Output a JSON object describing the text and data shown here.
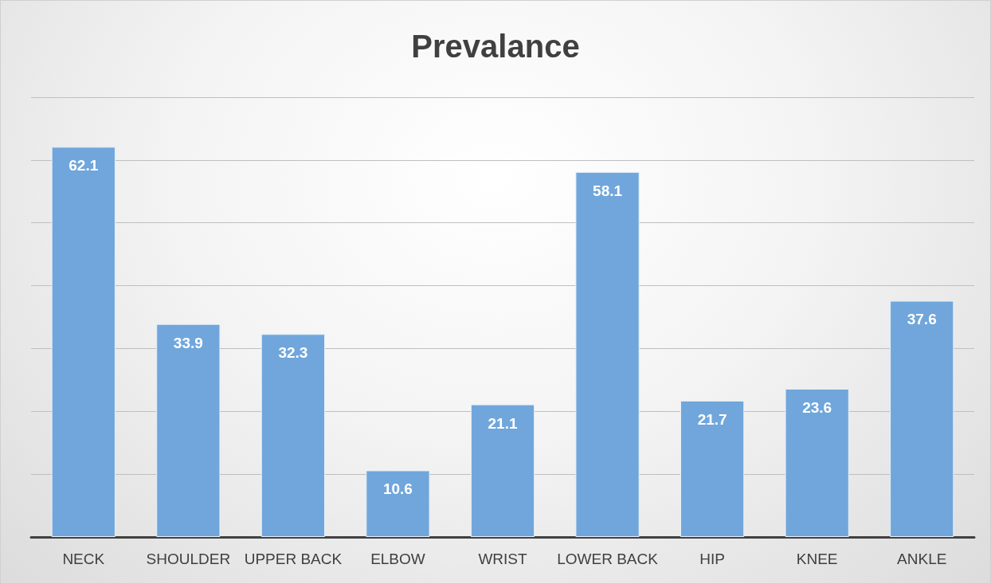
{
  "chart_data": {
    "type": "bar",
    "title": "Prevalance",
    "categories": [
      "NECK",
      "SHOULDER",
      "UPPER BACK",
      "ELBOW",
      "WRIST",
      "LOWER BACK",
      "HIP",
      "KNEE",
      "ANKLE"
    ],
    "values": [
      62.1,
      33.9,
      32.3,
      10.6,
      21.1,
      58.1,
      21.7,
      23.6,
      37.6
    ],
    "color": "#70a6db",
    "ylim": [
      0,
      70
    ],
    "yticks": [
      0,
      10,
      20,
      30,
      40,
      50,
      60,
      70
    ],
    "grid": "y",
    "tick_labels": "x",
    "data_labels": true
  }
}
